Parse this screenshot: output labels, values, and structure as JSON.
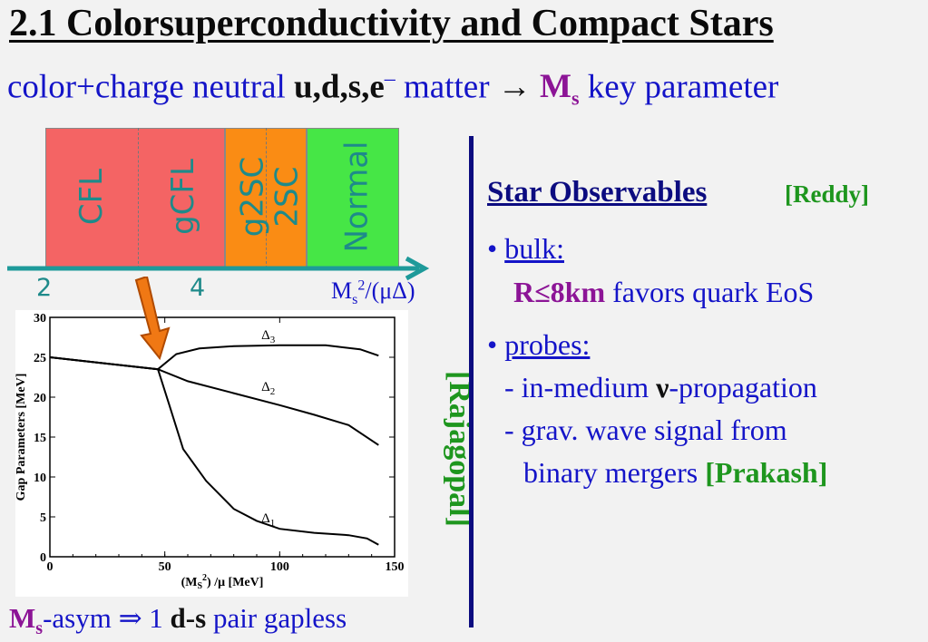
{
  "title": "2.1 Colorsuperconductivity and Compact Stars",
  "subtitle": {
    "part1": "color+charge neutral ",
    "quarks": "u,d,s,e",
    "sup": "‒",
    "part2": " matter ",
    "arrow": "→",
    "ms": "M",
    "ms_sub": "s",
    "part3": "  key parameter"
  },
  "phases": [
    {
      "label": "CFL",
      "color": "#f46464"
    },
    {
      "label": "gCFL",
      "color": "#f46464"
    },
    {
      "label": "g2SC",
      "color": "#fa8c14"
    },
    {
      "label": "2SC",
      "color": "#fa8c14"
    },
    {
      "label": "Normal",
      "color": "#46e646"
    }
  ],
  "phase_axis": {
    "ticks": [
      "2",
      "4"
    ],
    "label_main": "M",
    "label_sub": "s",
    "label_sup": "2",
    "label_rest": "/(μΔ)"
  },
  "chart_data": {
    "type": "line",
    "xlabel": "(M",
    "xlabel_sub": "S",
    "xlabel_sup": "2",
    "xlabel_rest": ") /μ [MeV]",
    "ylabel": "Gap Parameters [MeV]",
    "xlim": [
      0,
      150
    ],
    "ylim": [
      0,
      30
    ],
    "xticks": [
      0,
      50,
      100,
      150
    ],
    "yticks": [
      0,
      5,
      10,
      15,
      20,
      25,
      30
    ],
    "series": [
      {
        "name": "Δ",
        "name_sub": "3",
        "x": [
          0,
          47,
          55,
          65,
          80,
          100,
          120,
          135,
          143
        ],
        "y": [
          25.0,
          23.5,
          25.4,
          26.1,
          26.4,
          26.5,
          26.5,
          26.0,
          25.2
        ]
      },
      {
        "name": "Δ",
        "name_sub": "2",
        "x": [
          0,
          47,
          60,
          80,
          100,
          115,
          130,
          143
        ],
        "y": [
          25.0,
          23.5,
          22.0,
          20.5,
          19.0,
          17.8,
          16.5,
          14.0
        ]
      },
      {
        "name": "Δ",
        "name_sub": "1",
        "x": [
          0,
          47,
          52,
          58,
          68,
          80,
          90,
          100,
          115,
          130,
          138,
          143
        ],
        "y": [
          25.0,
          23.5,
          19.0,
          13.5,
          9.5,
          6.0,
          4.5,
          3.5,
          3.0,
          2.7,
          2.3,
          1.5
        ]
      }
    ]
  },
  "rajagopal": "[Rajagopal]",
  "right": {
    "obs_title": "Star Observables",
    "reddy": "[Reddy]",
    "bullet": "• ",
    "bulk": "bulk:",
    "r_cond": "R≤8km",
    "favors": " favors quark EoS",
    "probes": "probes:",
    "line1_a": "- in-medium ",
    "line1_nu": "ν",
    "line1_b": "-propagation",
    "line2": "- grav. wave signal from",
    "line3": "binary mergers ",
    "prakash": "[Prakash]"
  },
  "bottom": {
    "ms": "M",
    "ms_sub": "s",
    "t1": "-asym ⇒ 1 ",
    "ds": "d-s",
    "t2": " pair gapless"
  }
}
